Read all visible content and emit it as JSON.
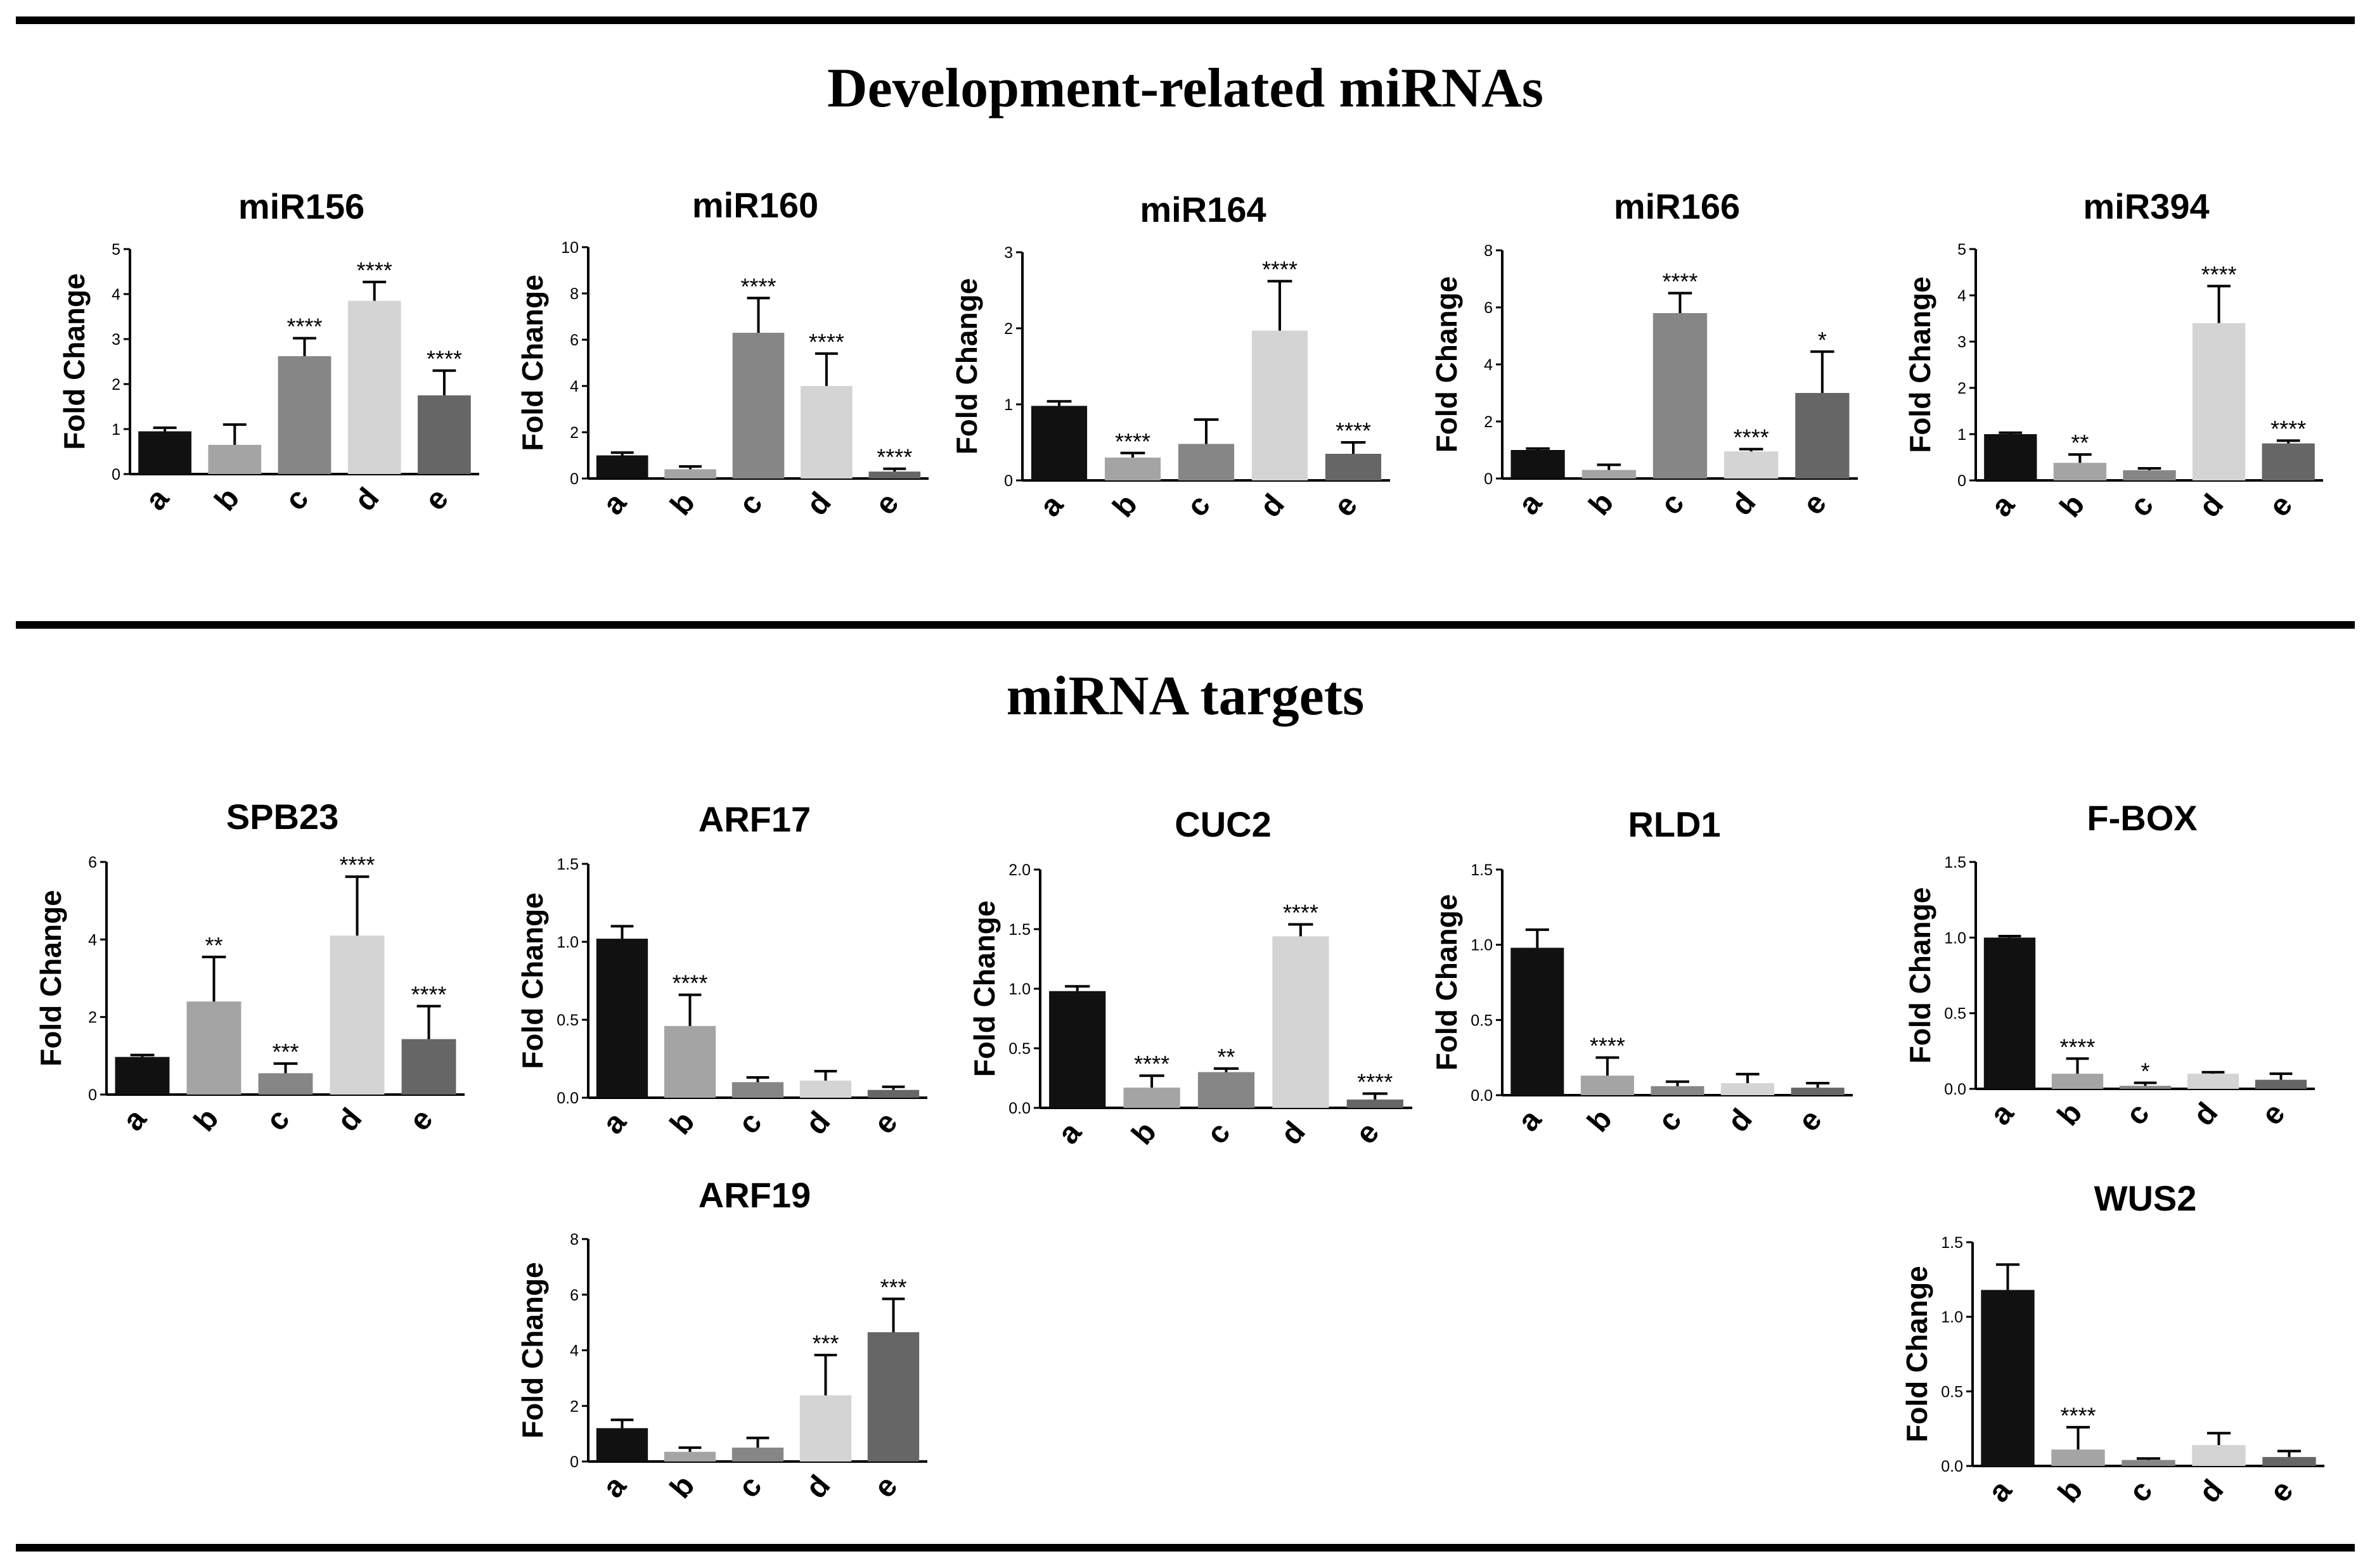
{
  "figure": {
    "section1_title": "Development-related miRNAs",
    "section2_title": "miRNA targets",
    "bar_colors": {
      "a": "#111111",
      "b": "#a4a4a4",
      "c": "#868686",
      "d": "#d4d4d4",
      "e": "#666666"
    }
  },
  "chart_data": [
    {
      "id": "miR156",
      "type": "bar",
      "title": "miR156",
      "ylabel": "Fold Change",
      "categories": [
        "a",
        "b",
        "c",
        "d",
        "e"
      ],
      "values": [
        0.95,
        0.65,
        2.62,
        3.85,
        1.75
      ],
      "errors": [
        0.08,
        0.45,
        0.4,
        0.42,
        0.55
      ],
      "significance": [
        "",
        "",
        "****",
        "****",
        "****"
      ],
      "ylim": [
        0,
        5
      ],
      "yticks": [
        "0",
        "1",
        "2",
        "3",
        "4",
        "5"
      ]
    },
    {
      "id": "miR160",
      "type": "bar",
      "title": "miR160",
      "ylabel": "Fold Change",
      "categories": [
        "a",
        "b",
        "c",
        "d",
        "e"
      ],
      "values": [
        1.0,
        0.4,
        6.3,
        4.0,
        0.3
      ],
      "errors": [
        0.12,
        0.12,
        1.5,
        1.4,
        0.12
      ],
      "significance": [
        "",
        "",
        "****",
        "****",
        "****"
      ],
      "ylim": [
        0,
        10
      ],
      "yticks": [
        "0",
        "2",
        "4",
        "6",
        "8",
        "10"
      ]
    },
    {
      "id": "miR164",
      "type": "bar",
      "title": "miR164",
      "ylabel": "Fold Change",
      "categories": [
        "a",
        "b",
        "c",
        "d",
        "e"
      ],
      "values": [
        0.98,
        0.3,
        0.48,
        1.97,
        0.35
      ],
      "errors": [
        0.06,
        0.06,
        0.32,
        0.65,
        0.15
      ],
      "significance": [
        "",
        "****",
        "",
        "****",
        "****"
      ],
      "ylim": [
        0,
        3
      ],
      "yticks": [
        "0",
        "1",
        "2",
        "3"
      ]
    },
    {
      "id": "miR166",
      "type": "bar",
      "title": "miR166",
      "ylabel": "Fold Change",
      "categories": [
        "a",
        "b",
        "c",
        "d",
        "e"
      ],
      "values": [
        1.0,
        0.3,
        5.8,
        0.95,
        3.0
      ],
      "errors": [
        0.05,
        0.18,
        0.7,
        0.08,
        1.45
      ],
      "significance": [
        "",
        "",
        "****",
        "****",
        "*"
      ],
      "ylim": [
        0,
        8
      ],
      "yticks": [
        "0",
        "2",
        "4",
        "6",
        "8"
      ]
    },
    {
      "id": "miR394",
      "type": "bar",
      "title": "miR394",
      "ylabel": "Fold Change",
      "categories": [
        "a",
        "b",
        "c",
        "d",
        "e"
      ],
      "values": [
        1.0,
        0.38,
        0.22,
        3.4,
        0.8
      ],
      "errors": [
        0.03,
        0.18,
        0.04,
        0.8,
        0.06
      ],
      "significance": [
        "",
        "**",
        "",
        "****",
        "****"
      ],
      "ylim": [
        0,
        5
      ],
      "yticks": [
        "0",
        "1",
        "2",
        "3",
        "4",
        "5"
      ]
    },
    {
      "id": "SPB23",
      "type": "bar",
      "title": "SPB23",
      "ylabel": "Fold Change",
      "categories": [
        "a",
        "b",
        "c",
        "d",
        "e"
      ],
      "values": [
        0.97,
        2.4,
        0.55,
        4.1,
        1.43
      ],
      "errors": [
        0.05,
        1.15,
        0.25,
        1.52,
        0.85
      ],
      "significance": [
        "",
        "**",
        "***",
        "****",
        "****"
      ],
      "ylim": [
        0,
        6
      ],
      "yticks": [
        "0",
        "2",
        "4",
        "6"
      ]
    },
    {
      "id": "ARF17",
      "type": "bar",
      "title": "ARF17",
      "ylabel": "Fold Change",
      "categories": [
        "a",
        "b",
        "c",
        "d",
        "e"
      ],
      "values": [
        1.02,
        0.46,
        0.1,
        0.11,
        0.05
      ],
      "errors": [
        0.08,
        0.2,
        0.03,
        0.06,
        0.02
      ],
      "significance": [
        "",
        "****",
        "",
        "",
        ""
      ],
      "ylim": [
        0,
        1.5
      ],
      "yticks": [
        "0.0",
        "0.5",
        "1.0",
        "1.5"
      ]
    },
    {
      "id": "CUC2",
      "type": "bar",
      "title": "CUC2",
      "ylabel": "Fold Change",
      "categories": [
        "a",
        "b",
        "c",
        "d",
        "e"
      ],
      "values": [
        0.98,
        0.17,
        0.3,
        1.44,
        0.07
      ],
      "errors": [
        0.04,
        0.1,
        0.03,
        0.1,
        0.05
      ],
      "significance": [
        "",
        "****",
        "**",
        "****",
        "****"
      ],
      "ylim": [
        0,
        2
      ],
      "yticks": [
        "0.0",
        "0.5",
        "1.0",
        "1.5",
        "2.0"
      ]
    },
    {
      "id": "RLD1",
      "type": "bar",
      "title": "RLD1",
      "ylabel": "Fold Change",
      "categories": [
        "a",
        "b",
        "c",
        "d",
        "e"
      ],
      "values": [
        0.98,
        0.13,
        0.06,
        0.08,
        0.05
      ],
      "errors": [
        0.12,
        0.12,
        0.03,
        0.06,
        0.03
      ],
      "significance": [
        "",
        "****",
        "",
        "",
        ""
      ],
      "ylim": [
        0,
        1.5
      ],
      "yticks": [
        "0.0",
        "0.5",
        "1.0",
        "1.5"
      ]
    },
    {
      "id": "F-BOX",
      "type": "bar",
      "title": "F-BOX",
      "ylabel": "Fold Change",
      "categories": [
        "a",
        "b",
        "c",
        "d",
        "e"
      ],
      "values": [
        1.0,
        0.1,
        0.02,
        0.1,
        0.06
      ],
      "errors": [
        0.01,
        0.1,
        0.02,
        0.01,
        0.04
      ],
      "significance": [
        "",
        "****",
        "*",
        "",
        ""
      ],
      "ylim": [
        0,
        1.5
      ],
      "yticks": [
        "0.0",
        "0.5",
        "1.0",
        "1.5"
      ]
    },
    {
      "id": "ARF19",
      "type": "bar",
      "title": "ARF19",
      "ylabel": "Fold Change",
      "categories": [
        "a",
        "b",
        "c",
        "d",
        "e"
      ],
      "values": [
        1.2,
        0.35,
        0.5,
        2.38,
        4.65
      ],
      "errors": [
        0.3,
        0.15,
        0.35,
        1.45,
        1.2
      ],
      "significance": [
        "",
        "",
        "",
        "***",
        "***"
      ],
      "ylim": [
        0,
        8
      ],
      "yticks": [
        "0",
        "2",
        "4",
        "6",
        "8"
      ]
    },
    {
      "id": "WUS2",
      "type": "bar",
      "title": "WUS2",
      "ylabel": "Fold Change",
      "categories": [
        "a",
        "b",
        "c",
        "d",
        "e"
      ],
      "values": [
        1.18,
        0.11,
        0.04,
        0.14,
        0.06
      ],
      "errors": [
        0.17,
        0.15,
        0.01,
        0.08,
        0.04
      ],
      "significance": [
        "",
        "****",
        "",
        "",
        ""
      ],
      "ylim": [
        0,
        1.5
      ],
      "yticks": [
        "0.0",
        "0.5",
        "1.0",
        "1.5"
      ]
    }
  ]
}
